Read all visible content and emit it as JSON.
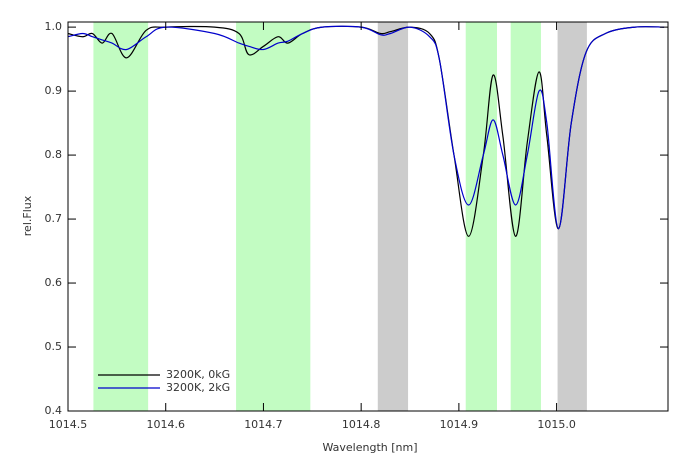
{
  "chart_data": {
    "type": "line",
    "x_label": "Wavelength [nm]",
    "y_label": "rel.Flux",
    "x": [
      1014.5,
      1014.515,
      1014.525,
      1014.535,
      1014.545,
      1014.56,
      1014.58,
      1014.6,
      1014.65,
      1014.675,
      1014.685,
      1014.7,
      1014.715,
      1014.725,
      1014.74,
      1014.76,
      1014.8,
      1014.82,
      1014.83,
      1014.85,
      1014.87,
      1014.88,
      1014.895,
      1014.91,
      1014.925,
      1014.935,
      1014.945,
      1014.958,
      1014.97,
      1014.982,
      1014.99,
      1015.002,
      1015.015,
      1015.03,
      1015.05,
      1015.08,
      1015.11
    ],
    "series": [
      {
        "name": "3200K, 0kG",
        "color": "#000000",
        "values": [
          0.99,
          0.985,
          0.99,
          0.975,
          0.99,
          0.952,
          0.995,
          1.0,
          1.0,
          0.99,
          0.957,
          0.97,
          0.985,
          0.975,
          0.99,
          1.0,
          1.0,
          0.99,
          0.993,
          1.0,
          0.99,
          0.95,
          0.8,
          0.673,
          0.8,
          0.925,
          0.83,
          0.673,
          0.82,
          0.93,
          0.83,
          0.685,
          0.85,
          0.96,
          0.99,
          1.0,
          1.0
        ]
      },
      {
        "name": "3200K, 2kG",
        "color": "#0000cc",
        "values": [
          0.985,
          0.99,
          0.985,
          0.98,
          0.975,
          0.965,
          0.985,
          1.0,
          0.99,
          0.975,
          0.97,
          0.965,
          0.975,
          0.978,
          0.99,
          1.0,
          1.0,
          0.988,
          0.99,
          1.0,
          0.985,
          0.95,
          0.8,
          0.722,
          0.8,
          0.855,
          0.8,
          0.722,
          0.8,
          0.9,
          0.85,
          0.685,
          0.85,
          0.96,
          0.99,
          1.0,
          1.0
        ]
      }
    ],
    "bands": [
      {
        "x0": 1014.526,
        "x1": 1014.582,
        "color": "#c2fcc2"
      },
      {
        "x0": 1014.672,
        "x1": 1014.748,
        "color": "#c2fcc2"
      },
      {
        "x0": 1014.817,
        "x1": 1014.848,
        "color": "#cccccc"
      },
      {
        "x0": 1014.907,
        "x1": 1014.939,
        "color": "#c2fcc2"
      },
      {
        "x0": 1014.953,
        "x1": 1014.984,
        "color": "#c2fcc2"
      },
      {
        "x0": 1015.001,
        "x1": 1015.031,
        "color": "#cccccc"
      }
    ],
    "xlim": [
      1014.5,
      1015.114
    ],
    "ylim": [
      0.4,
      1.008
    ],
    "xticks": [
      1014.5,
      1014.6,
      1014.7,
      1014.8,
      1014.9,
      {
        "value": 1015,
        "label": "1015.0"
      }
    ],
    "yticks": [
      0.4,
      0.5,
      0.6,
      0.7,
      0.8,
      0.9,
      {
        "value": 1,
        "label": "1.0"
      }
    ],
    "legend": "bottom-left"
  }
}
